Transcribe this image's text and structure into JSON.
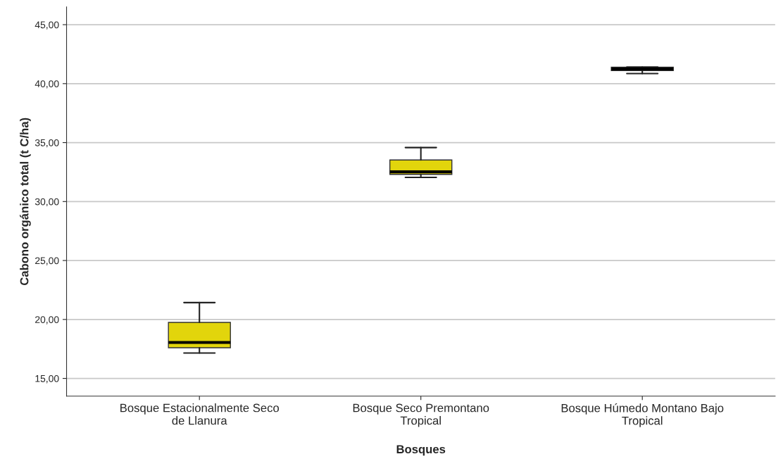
{
  "chart_data": {
    "type": "box",
    "xlabel": "Bosques",
    "ylabel": "Cabono orgánico total (t C/ha)",
    "categories": [
      "Bosque Estacionalmente Seco\nde Llanura",
      "Bosque Seco Premontano\nTropical",
      "Bosque Húmedo Montano Bajo\nTropical"
    ],
    "boxes": [
      {
        "low": 17.15,
        "q1": 17.6,
        "median": 18.05,
        "q3": 19.75,
        "high": 21.43
      },
      {
        "low": 32.05,
        "q1": 32.3,
        "median": 32.52,
        "q3": 33.53,
        "high": 34.58
      },
      {
        "low": 40.85,
        "q1": 41.1,
        "median": 41.25,
        "q3": 41.4,
        "high": 41.4
      }
    ],
    "color": "#e2d50c",
    "ylim": [
      13.5,
      46.5
    ],
    "yticks": [
      {
        "value": 15,
        "label": "15,00"
      },
      {
        "value": 20,
        "label": "20,00"
      },
      {
        "value": 25,
        "label": "25,00"
      },
      {
        "value": 30,
        "label": "30,00"
      },
      {
        "value": 35,
        "label": "35,00"
      },
      {
        "value": 40,
        "label": "40,00"
      },
      {
        "value": 45,
        "label": "45,00"
      }
    ],
    "grid": "y"
  }
}
